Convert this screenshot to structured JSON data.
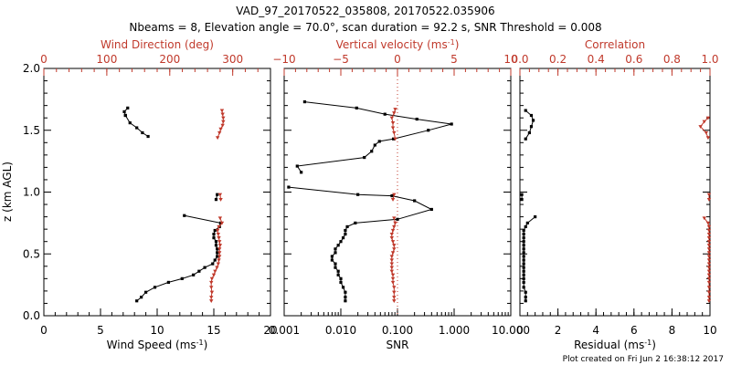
{
  "figure": {
    "title": "VAD_97_20170522_035808, 20170522.035906",
    "subtitle": "Nbeams = 8, Elevation angle = 70.0°, scan duration = 92.2 s, SNR Threshold = 0.008",
    "ylabel": "z (km AGL)",
    "yticks": [
      "0.0",
      "0.5",
      "1.0",
      "1.5",
      "2.0"
    ],
    "footer": "Plot created on Fri Jun  2 16:38:12 2017",
    "colors": {
      "primary": "#000000",
      "secondary": "#c0392b"
    }
  },
  "chart_data": [
    {
      "type": "line",
      "name": "wind-panel",
      "ylim": [
        0,
        2
      ],
      "bottom_axis": {
        "label": "Wind Speed (ms",
        "label_sup": "-1",
        "label_end": ")",
        "range": [
          0,
          20
        ],
        "ticks": [
          "0",
          "5",
          "10",
          "15",
          "20"
        ]
      },
      "top_axis": {
        "label": "Wind Direction (deg)",
        "range": [
          0,
          360
        ],
        "ticks": [
          "0",
          "100",
          "200",
          "300"
        ]
      },
      "series": [
        {
          "axis": "bottom",
          "color": "#000000",
          "segments": [
            [
              [
                8.2,
                0.12
              ],
              [
                8.6,
                0.15
              ],
              [
                9.0,
                0.19
              ],
              [
                9.8,
                0.23
              ],
              [
                11.0,
                0.27
              ],
              [
                12.2,
                0.3
              ],
              [
                13.2,
                0.33
              ],
              [
                13.7,
                0.36
              ],
              [
                14.2,
                0.39
              ],
              [
                14.9,
                0.42
              ],
              [
                15.1,
                0.45
              ],
              [
                15.3,
                0.48
              ],
              [
                15.3,
                0.51
              ],
              [
                15.3,
                0.54
              ],
              [
                15.2,
                0.57
              ],
              [
                15.2,
                0.6
              ],
              [
                15.0,
                0.63
              ],
              [
                15.0,
                0.66
              ],
              [
                15.1,
                0.69
              ],
              [
                15.5,
                0.72
              ],
              [
                15.6,
                0.75
              ],
              [
                12.4,
                0.81
              ]
            ],
            [
              [
                15.2,
                0.94
              ],
              [
                15.3,
                0.98
              ]
            ],
            [
              [
                7.2,
                1.62
              ],
              [
                7.1,
                1.65
              ],
              [
                7.4,
                1.68
              ]
            ],
            [
              [
                7.2,
                1.62
              ],
              [
                7.6,
                1.56
              ],
              [
                8.2,
                1.52
              ],
              [
                8.7,
                1.48
              ],
              [
                9.2,
                1.45
              ]
            ]
          ]
        },
        {
          "axis": "top",
          "color": "#c0392b",
          "segments": [
            [
              [
                266,
                0.12
              ],
              [
                266,
                0.15
              ],
              [
                267,
                0.19
              ],
              [
                266,
                0.23
              ],
              [
                266,
                0.27
              ],
              [
                267,
                0.3
              ],
              [
                270,
                0.33
              ],
              [
                272,
                0.36
              ],
              [
                275,
                0.39
              ],
              [
                277,
                0.42
              ],
              [
                278,
                0.45
              ],
              [
                279,
                0.48
              ],
              [
                279,
                0.51
              ],
              [
                279,
                0.54
              ],
              [
                280,
                0.57
              ],
              [
                279,
                0.6
              ],
              [
                278,
                0.63
              ],
              [
                277,
                0.66
              ],
              [
                276,
                0.69
              ],
              [
                278,
                0.72
              ],
              [
                283,
                0.75
              ],
              [
                280,
                0.79
              ]
            ],
            [
              [
                281,
                0.94
              ],
              [
                280,
                0.98
              ]
            ],
            [
              [
                276,
                1.44
              ],
              [
                279,
                1.48
              ],
              [
                281,
                1.51
              ],
              [
                284,
                1.54
              ],
              [
                285,
                1.57
              ],
              [
                285,
                1.6
              ],
              [
                284,
                1.63
              ],
              [
                283,
                1.66
              ]
            ]
          ]
        }
      ]
    },
    {
      "type": "line",
      "name": "snr-panel",
      "ylim": [
        0,
        2
      ],
      "bottom_axis": {
        "label": "SNR",
        "scale": "log",
        "range": [
          0.001,
          10
        ],
        "ticks": [
          "0.001",
          "0.010",
          "0.100",
          "1.000",
          "10.000"
        ]
      },
      "top_axis": {
        "label": "Vertical velocity (ms",
        "label_sup": "-1",
        "label_end": ")",
        "range": [
          -10,
          10
        ],
        "ticks": [
          "−10",
          "−5",
          "0",
          "5",
          "10"
        ]
      },
      "reference_line": {
        "axis": "top",
        "value": 0,
        "style": "dotted",
        "color": "#c0392b"
      },
      "series": [
        {
          "axis": "bottom",
          "color": "#000000",
          "segments": [
            [
              [
                0.012,
                0.12
              ],
              [
                0.012,
                0.15
              ],
              [
                0.012,
                0.19
              ],
              [
                0.011,
                0.23
              ],
              [
                0.01,
                0.27
              ],
              [
                0.01,
                0.3
              ],
              [
                0.009,
                0.33
              ],
              [
                0.009,
                0.36
              ],
              [
                0.008,
                0.39
              ],
              [
                0.008,
                0.42
              ],
              [
                0.007,
                0.45
              ],
              [
                0.007,
                0.48
              ],
              [
                0.008,
                0.51
              ],
              [
                0.008,
                0.54
              ],
              [
                0.009,
                0.57
              ],
              [
                0.01,
                0.6
              ],
              [
                0.011,
                0.63
              ],
              [
                0.012,
                0.66
              ],
              [
                0.012,
                0.69
              ],
              [
                0.013,
                0.72
              ],
              [
                0.018,
                0.75
              ],
              [
                0.1,
                0.78
              ],
              [
                0.4,
                0.86
              ],
              [
                0.2,
                0.93
              ],
              [
                0.08,
                0.97
              ],
              [
                0.02,
                0.98
              ],
              [
                0.0012,
                1.04
              ]
            ],
            [
              [
                0.002,
                1.16
              ],
              [
                0.0017,
                1.21
              ],
              [
                0.026,
                1.28
              ],
              [
                0.035,
                1.33
              ],
              [
                0.04,
                1.38
              ],
              [
                0.048,
                1.41
              ],
              [
                0.085,
                1.43
              ],
              [
                0.35,
                1.5
              ],
              [
                0.9,
                1.55
              ],
              [
                0.22,
                1.59
              ],
              [
                0.06,
                1.63
              ],
              [
                0.019,
                1.68
              ],
              [
                0.0023,
                1.73
              ]
            ]
          ]
        },
        {
          "axis": "top",
          "color": "#c0392b",
          "segments": [
            [
              [
                -0.3,
                0.12
              ],
              [
                -0.3,
                0.15
              ],
              [
                -0.3,
                0.19
              ],
              [
                -0.3,
                0.23
              ],
              [
                -0.4,
                0.27
              ],
              [
                -0.4,
                0.3
              ],
              [
                -0.4,
                0.33
              ],
              [
                -0.5,
                0.36
              ],
              [
                -0.5,
                0.39
              ],
              [
                -0.5,
                0.42
              ],
              [
                -0.5,
                0.45
              ],
              [
                -0.5,
                0.48
              ],
              [
                -0.4,
                0.51
              ],
              [
                -0.3,
                0.54
              ],
              [
                -0.3,
                0.57
              ],
              [
                -0.4,
                0.6
              ],
              [
                -0.5,
                0.63
              ],
              [
                -0.5,
                0.66
              ],
              [
                -0.4,
                0.69
              ],
              [
                -0.3,
                0.72
              ],
              [
                -0.2,
                0.75
              ],
              [
                -0.3,
                0.79
              ]
            ],
            [
              [
                -0.4,
                0.94
              ],
              [
                -0.3,
                0.98
              ]
            ],
            [
              [
                -0.2,
                1.43
              ],
              [
                -0.3,
                1.48
              ],
              [
                -0.4,
                1.52
              ],
              [
                -0.4,
                1.56
              ],
              [
                -0.5,
                1.6
              ],
              [
                -0.3,
                1.64
              ],
              [
                -0.2,
                1.67
              ]
            ]
          ]
        }
      ]
    },
    {
      "type": "line",
      "name": "residual-panel",
      "ylim": [
        0,
        2
      ],
      "bottom_axis": {
        "label": "Residual  (ms",
        "label_sup": "-1",
        "label_end": ")",
        "range": [
          0,
          10
        ],
        "ticks": [
          "0",
          "2",
          "4",
          "6",
          "8",
          "10"
        ]
      },
      "top_axis": {
        "label": "Correlation",
        "range": [
          0,
          1
        ],
        "ticks": [
          "0.0",
          "0.2",
          "0.4",
          "0.6",
          "0.8",
          "1.0"
        ]
      },
      "series": [
        {
          "axis": "bottom",
          "color": "#000000",
          "segments": [
            [
              [
                0.3,
                0.12
              ],
              [
                0.3,
                0.15
              ],
              [
                0.3,
                0.19
              ],
              [
                0.2,
                0.23
              ],
              [
                0.2,
                0.27
              ],
              [
                0.2,
                0.3
              ],
              [
                0.2,
                0.33
              ],
              [
                0.2,
                0.36
              ],
              [
                0.2,
                0.39
              ],
              [
                0.2,
                0.42
              ],
              [
                0.2,
                0.45
              ],
              [
                0.2,
                0.48
              ],
              [
                0.2,
                0.51
              ],
              [
                0.2,
                0.54
              ],
              [
                0.2,
                0.57
              ],
              [
                0.2,
                0.6
              ],
              [
                0.2,
                0.63
              ],
              [
                0.2,
                0.66
              ],
              [
                0.2,
                0.69
              ],
              [
                0.3,
                0.72
              ],
              [
                0.4,
                0.75
              ],
              [
                0.8,
                0.8
              ]
            ],
            [
              [
                0.1,
                0.94
              ],
              [
                0.1,
                0.98
              ]
            ],
            [
              [
                0.3,
                1.43
              ],
              [
                0.5,
                1.48
              ],
              [
                0.6,
                1.53
              ],
              [
                0.7,
                1.58
              ],
              [
                0.6,
                1.62
              ],
              [
                0.3,
                1.66
              ]
            ]
          ]
        },
        {
          "axis": "top",
          "color": "#c0392b",
          "segments": [
            [
              [
                0.995,
                0.12
              ],
              [
                0.995,
                0.15
              ],
              [
                0.995,
                0.19
              ],
              [
                0.995,
                0.23
              ],
              [
                0.995,
                0.27
              ],
              [
                0.995,
                0.3
              ],
              [
                0.995,
                0.33
              ],
              [
                0.995,
                0.36
              ],
              [
                0.995,
                0.39
              ],
              [
                0.995,
                0.42
              ],
              [
                0.995,
                0.45
              ],
              [
                0.995,
                0.48
              ],
              [
                0.995,
                0.51
              ],
              [
                0.995,
                0.54
              ],
              [
                0.995,
                0.57
              ],
              [
                0.995,
                0.6
              ],
              [
                0.995,
                0.63
              ],
              [
                0.995,
                0.66
              ],
              [
                0.995,
                0.69
              ],
              [
                0.995,
                0.72
              ],
              [
                0.99,
                0.75
              ],
              [
                0.97,
                0.79
              ]
            ],
            [
              [
                0.995,
                0.94
              ],
              [
                0.995,
                0.98
              ]
            ],
            [
              [
                0.99,
                1.44
              ],
              [
                0.98,
                1.48
              ],
              [
                0.95,
                1.53
              ],
              [
                0.97,
                1.57
              ],
              [
                0.99,
                1.6
              ]
            ]
          ]
        }
      ]
    }
  ]
}
